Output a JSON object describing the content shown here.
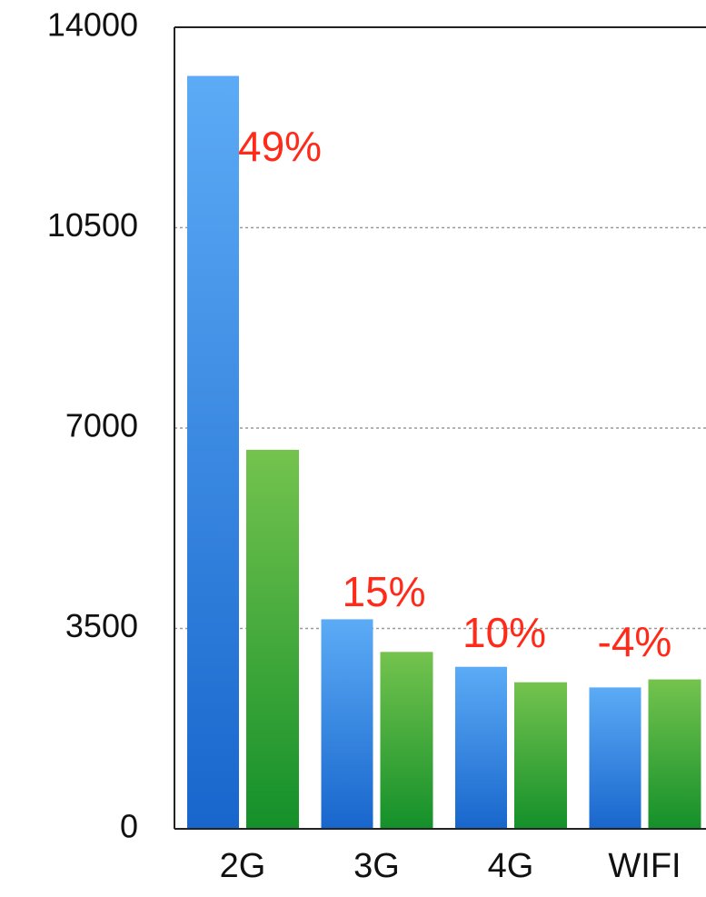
{
  "chart_data": {
    "type": "bar",
    "categories": [
      "2G",
      "3G",
      "4G",
      "WIFI"
    ],
    "series": [
      {
        "color": "#3b8fe8",
        "values": [
          13150,
          3660,
          2830,
          2470
        ]
      },
      {
        "color": "#3aa83a",
        "values": [
          6620,
          3090,
          2560,
          2610
        ]
      }
    ],
    "annotations": [
      "49%",
      "15%",
      "10%",
      "-4%"
    ],
    "annotation_color": "#ff2a1a",
    "ylim": [
      0,
      14000
    ],
    "yticks": [
      0,
      3500,
      7000,
      10500,
      14000
    ],
    "grid": true
  }
}
